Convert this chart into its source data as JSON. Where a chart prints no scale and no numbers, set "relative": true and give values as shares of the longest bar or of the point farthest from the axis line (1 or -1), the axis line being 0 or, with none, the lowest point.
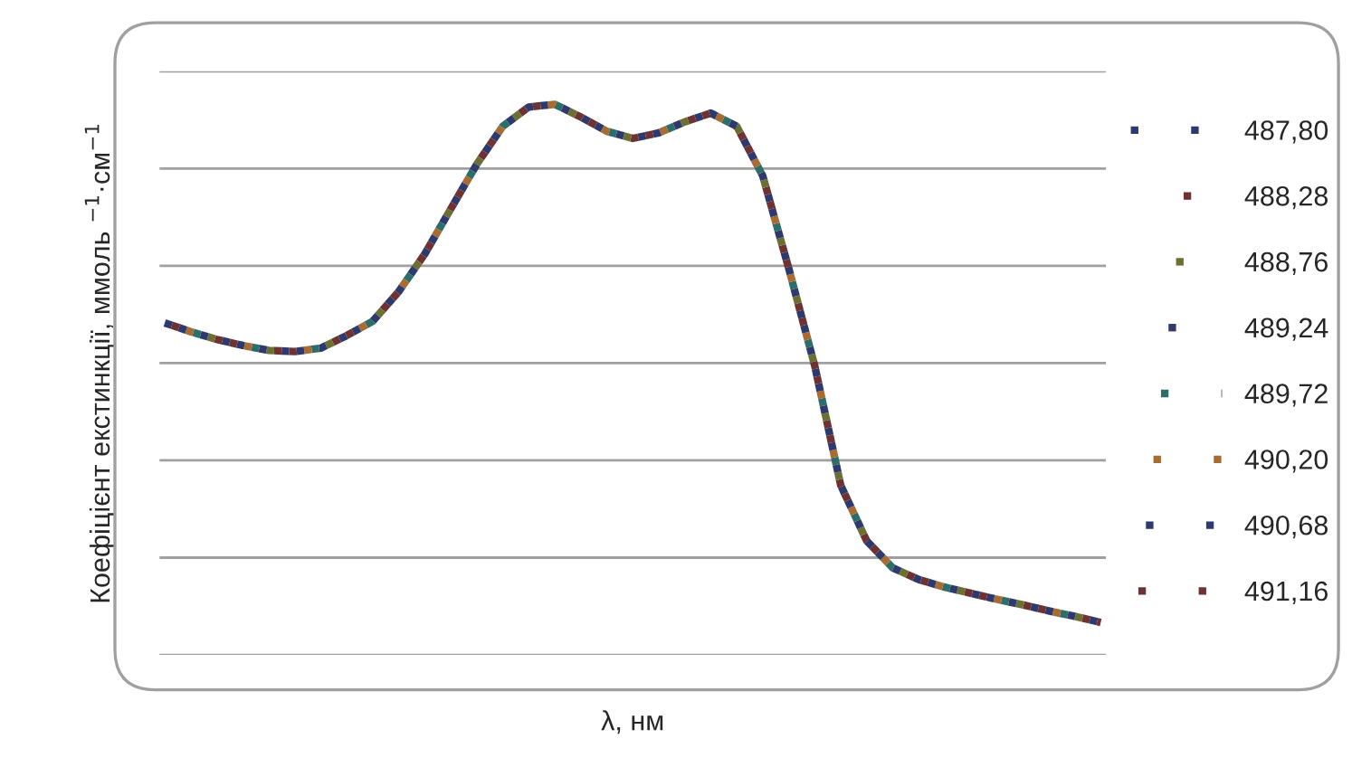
{
  "chart_data": {
    "type": "line",
    "relative": true,
    "xlabel": "λ, нм",
    "ylabel": "Коефіцієнт екстинкції, ммоль $^{−1}$·см$^{−1}$",
    "categories": [
      null,
      null,
      null,
      null,
      null,
      null,
      null,
      null,
      null,
      null,
      null,
      null,
      null,
      null,
      null,
      null,
      null,
      null,
      null,
      null,
      null,
      null,
      null,
      null,
      null,
      null,
      null,
      null,
      null,
      null,
      null,
      null,
      null,
      null,
      null,
      null,
      null
    ],
    "grid": "y",
    "legend": "right",
    "line_style": "dashed",
    "marker": "none",
    "series": [
      {
        "name": "487,80",
        "color": "#2e3a6e",
        "values": [
          0.603,
          0.587,
          0.573,
          0.562,
          0.553,
          0.551,
          0.557,
          0.58,
          0.606,
          0.66,
          0.728,
          0.81,
          0.891,
          0.96,
          0.995,
          1.0,
          0.977,
          0.951,
          0.938,
          0.948,
          0.968,
          0.984,
          0.96,
          0.87,
          0.702,
          0.525,
          0.308,
          0.207,
          0.158,
          0.137,
          0.123,
          0.112,
          0.101,
          0.091,
          0.08,
          0.07,
          0.059
        ]
      },
      {
        "name": "488,28",
        "color": "#6e3232",
        "values": [
          0.603,
          0.587,
          0.573,
          0.562,
          0.553,
          0.551,
          0.557,
          0.58,
          0.606,
          0.66,
          0.728,
          0.81,
          0.891,
          0.96,
          0.995,
          1.0,
          0.977,
          0.951,
          0.938,
          0.948,
          0.968,
          0.984,
          0.96,
          0.87,
          0.702,
          0.525,
          0.308,
          0.207,
          0.158,
          0.137,
          0.123,
          0.112,
          0.101,
          0.091,
          0.08,
          0.07,
          0.059
        ]
      },
      {
        "name": "488,76",
        "color": "#6b7032",
        "values": [
          0.603,
          0.587,
          0.573,
          0.562,
          0.553,
          0.551,
          0.557,
          0.58,
          0.606,
          0.66,
          0.728,
          0.81,
          0.891,
          0.96,
          0.995,
          1.0,
          0.977,
          0.951,
          0.938,
          0.948,
          0.968,
          0.984,
          0.96,
          0.87,
          0.702,
          0.525,
          0.308,
          0.207,
          0.158,
          0.137,
          0.123,
          0.112,
          0.101,
          0.091,
          0.08,
          0.07,
          0.059
        ]
      },
      {
        "name": "489,24",
        "color": "#2e3a6e",
        "values": [
          0.603,
          0.587,
          0.573,
          0.562,
          0.553,
          0.551,
          0.557,
          0.58,
          0.606,
          0.66,
          0.728,
          0.81,
          0.891,
          0.96,
          0.995,
          1.0,
          0.977,
          0.951,
          0.938,
          0.948,
          0.968,
          0.984,
          0.96,
          0.87,
          0.702,
          0.525,
          0.308,
          0.207,
          0.158,
          0.137,
          0.123,
          0.112,
          0.101,
          0.091,
          0.08,
          0.07,
          0.059
        ]
      },
      {
        "name": "489,72",
        "color": "#2e6e6a",
        "values": [
          0.603,
          0.587,
          0.573,
          0.562,
          0.553,
          0.551,
          0.557,
          0.58,
          0.606,
          0.66,
          0.728,
          0.81,
          0.891,
          0.96,
          0.995,
          1.0,
          0.977,
          0.951,
          0.938,
          0.948,
          0.968,
          0.984,
          0.96,
          0.87,
          0.702,
          0.525,
          0.308,
          0.207,
          0.158,
          0.137,
          0.123,
          0.112,
          0.101,
          0.091,
          0.08,
          0.07,
          0.059
        ]
      },
      {
        "name": "490,20",
        "color": "#a86c32",
        "values": [
          0.603,
          0.587,
          0.573,
          0.562,
          0.553,
          0.551,
          0.557,
          0.58,
          0.606,
          0.66,
          0.728,
          0.81,
          0.891,
          0.96,
          0.995,
          1.0,
          0.977,
          0.951,
          0.938,
          0.948,
          0.968,
          0.984,
          0.96,
          0.87,
          0.702,
          0.525,
          0.308,
          0.207,
          0.158,
          0.137,
          0.123,
          0.112,
          0.101,
          0.091,
          0.08,
          0.07,
          0.059
        ]
      },
      {
        "name": "490,68",
        "color": "#2e3a6e",
        "values": [
          0.603,
          0.587,
          0.573,
          0.562,
          0.553,
          0.551,
          0.557,
          0.58,
          0.606,
          0.66,
          0.728,
          0.81,
          0.891,
          0.96,
          0.995,
          1.0,
          0.977,
          0.951,
          0.938,
          0.948,
          0.968,
          0.984,
          0.96,
          0.87,
          0.702,
          0.525,
          0.308,
          0.207,
          0.158,
          0.137,
          0.123,
          0.112,
          0.101,
          0.091,
          0.08,
          0.07,
          0.059
        ]
      },
      {
        "name": "491,16",
        "color": "#6e3232",
        "values": [
          0.603,
          0.587,
          0.573,
          0.562,
          0.553,
          0.551,
          0.557,
          0.58,
          0.606,
          0.66,
          0.728,
          0.81,
          0.891,
          0.96,
          0.995,
          1.0,
          0.977,
          0.951,
          0.938,
          0.948,
          0.968,
          0.984,
          0.96,
          0.87,
          0.702,
          0.525,
          0.308,
          0.207,
          0.158,
          0.137,
          0.123,
          0.112,
          0.101,
          0.091,
          0.08,
          0.07,
          0.059
        ]
      }
    ]
  }
}
